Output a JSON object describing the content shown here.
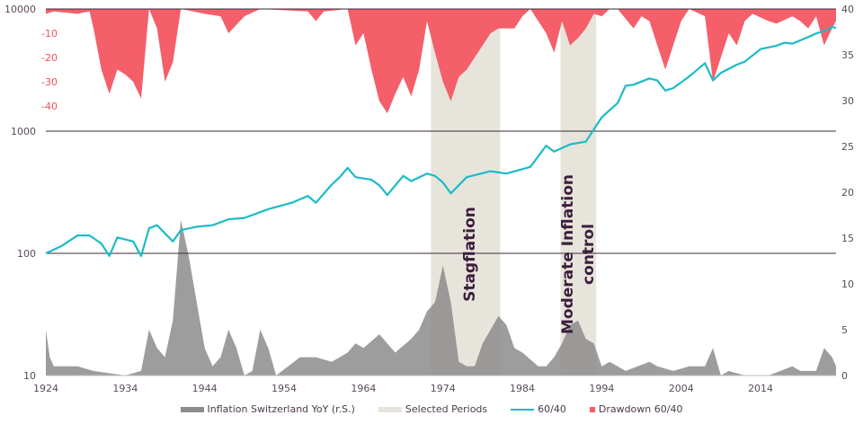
{
  "chart_data": {
    "type": "line",
    "x_range": [
      1924,
      2023.5
    ],
    "x_ticks": [
      "1924",
      "1934",
      "1944",
      "1954",
      "1964",
      "1974",
      "1984",
      "1994",
      "2004",
      "2014"
    ],
    "left_axis": {
      "scale": "log",
      "ticks": [
        "10",
        "100",
        "1000",
        "10000"
      ],
      "range": [
        10,
        10000
      ]
    },
    "drawdown_axis": {
      "ticks": [
        "-10",
        "-20",
        "-30",
        "-40"
      ],
      "range": [
        -50,
        0
      ]
    },
    "right_axis": {
      "ticks": [
        "0",
        "5",
        "10",
        "15",
        "20",
        "25",
        "30",
        "35",
        "40"
      ],
      "range": [
        0,
        40
      ]
    },
    "grid": "horizontal lines at 100, 1000, 10000",
    "legend_position": "bottom",
    "colors": {
      "inflation": "#8c8c8c",
      "periods": "#e7e4dc",
      "line": "#1bbcc6",
      "drawdown": "#f45f6a",
      "axis_text": "#5a4a5a",
      "drawdown_text": "#f0505c",
      "annotation": "#3b1f3b"
    },
    "selected_periods": [
      {
        "start": 1972.5,
        "end": 1981.2,
        "label": "Stagflation"
      },
      {
        "start": 1988.8,
        "end": 1993.3,
        "label": "Moderate Inflation control"
      }
    ],
    "series": [
      {
        "name": "60/40",
        "axis": "left",
        "x": [
          1924,
          1926,
          1928,
          1929.5,
          1931,
          1932,
          1933,
          1935,
          1936,
          1937,
          1938,
          1940,
          1941,
          1943,
          1945,
          1947,
          1949,
          1952,
          1955,
          1957,
          1958,
          1960,
          1961,
          1962,
          1963,
          1965,
          1966,
          1967,
          1969,
          1970,
          1972,
          1973,
          1974,
          1975,
          1977,
          1980,
          1982,
          1985,
          1987,
          1988,
          1990,
          1992,
          1994,
          1996,
          1997,
          1998,
          2000,
          2001,
          2002,
          2003,
          2005,
          2007,
          2008,
          2009,
          2011,
          2012,
          2014,
          2016,
          2017,
          2018,
          2020,
          2021,
          2022,
          2023,
          2023.5
        ],
        "y": [
          100,
          115,
          140,
          140,
          120,
          95,
          135,
          125,
          95,
          160,
          170,
          125,
          155,
          165,
          170,
          190,
          195,
          230,
          260,
          295,
          260,
          365,
          420,
          500,
          420,
          400,
          360,
          300,
          430,
          390,
          450,
          430,
          380,
          310,
          420,
          470,
          450,
          510,
          760,
          680,
          780,
          820,
          1300,
          1700,
          2350,
          2400,
          2700,
          2600,
          2150,
          2250,
          2800,
          3600,
          2600,
          3000,
          3500,
          3700,
          4700,
          5000,
          5300,
          5200,
          5900,
          6300,
          6600,
          7100,
          7000
        ]
      },
      {
        "name": "Inflation Switzerland YoY (r.S.)",
        "axis": "right",
        "x": [
          1924,
          1924.5,
          1925,
          1928,
          1930,
          1934,
          1936,
          1937,
          1938,
          1939,
          1940,
          1941,
          1942,
          1943,
          1944,
          1945,
          1946,
          1947,
          1948,
          1949,
          1950,
          1951,
          1952,
          1953,
          1956,
          1958,
          1960,
          1962,
          1963,
          1964,
          1966,
          1968,
          1970,
          1971,
          1972,
          1973,
          1974,
          1975,
          1976,
          1977,
          1978,
          1979,
          1980,
          1981,
          1982,
          1983,
          1984,
          1986,
          1987,
          1988,
          1989,
          1990,
          1991,
          1992,
          1993,
          1994,
          1995,
          1997,
          2000,
          2001,
          2003,
          2005,
          2007,
          2008,
          2009,
          2010,
          2012,
          2015,
          2018,
          2019,
          2021,
          2022,
          2023,
          2023.5
        ],
        "y": [
          5,
          2,
          1,
          1,
          0.5,
          0,
          0.5,
          5,
          3,
          2,
          6,
          17,
          13,
          8,
          3,
          1,
          2,
          5,
          3,
          0,
          0.5,
          5,
          3,
          0,
          2,
          2,
          1.5,
          2.5,
          3.5,
          3,
          4.5,
          2.5,
          4,
          5,
          7,
          8,
          12,
          8,
          1.5,
          1,
          1,
          3.5,
          5,
          6.5,
          5.5,
          3,
          2.5,
          1,
          1,
          2,
          3.5,
          5.5,
          6,
          4,
          3.5,
          1,
          1.5,
          0.5,
          1.5,
          1,
          0.5,
          1,
          1,
          3,
          0,
          0.5,
          0,
          0,
          1,
          0.5,
          0.5,
          3,
          2,
          1
        ]
      },
      {
        "name": "Drawdown 60/40",
        "axis": "drawdown",
        "x": [
          1924,
          1925,
          1928,
          1929.5,
          1930,
          1931,
          1932,
          1933,
          1934,
          1935,
          1936,
          1937,
          1938,
          1939,
          1940,
          1941,
          1944,
          1946,
          1947,
          1949,
          1951,
          1957,
          1958,
          1959,
          1962,
          1963,
          1964,
          1965,
          1966,
          1967,
          1968,
          1969,
          1970,
          1971,
          1972,
          1973,
          1974,
          1975,
          1976,
          1977,
          1978,
          1979,
          1980,
          1981,
          1983,
          1984,
          1985,
          1987,
          1988,
          1989,
          1990,
          1991,
          1992,
          1993,
          1994,
          1995,
          1996,
          1998,
          1999,
          2000,
          2001,
          2002,
          2003,
          2004,
          2005,
          2007,
          2008,
          2009,
          2010,
          2011,
          2012,
          2013,
          2015,
          2016,
          2018,
          2019,
          2020,
          2021,
          2022,
          2023,
          2023.5
        ],
        "y": [
          -2,
          -1,
          -2,
          -1,
          -8,
          -25,
          -35,
          -25,
          -27,
          -30,
          -37,
          0,
          -8,
          -30,
          -22,
          0,
          -2,
          -3,
          -10,
          -3,
          0,
          -1,
          -5,
          -1,
          0,
          -15,
          -10,
          -25,
          -38,
          -43,
          -35,
          -28,
          -36,
          -25,
          -5,
          -18,
          -30,
          -38,
          -28,
          -25,
          -20,
          -15,
          -10,
          -8,
          -8,
          -3,
          0,
          -10,
          -18,
          -5,
          -15,
          -12,
          -8,
          -2,
          -3,
          0,
          0,
          -8,
          -3,
          -5,
          -15,
          -25,
          -15,
          -5,
          0,
          -3,
          -30,
          -20,
          -10,
          -15,
          -5,
          -2,
          -5,
          -6,
          -3,
          -5,
          -8,
          -3,
          -15,
          -8,
          -5
        ]
      }
    ],
    "legend": [
      "Inflation Switzerland YoY (r.S.)",
      "Selected Periods",
      "60/40",
      "Drawdown 60/40"
    ]
  }
}
